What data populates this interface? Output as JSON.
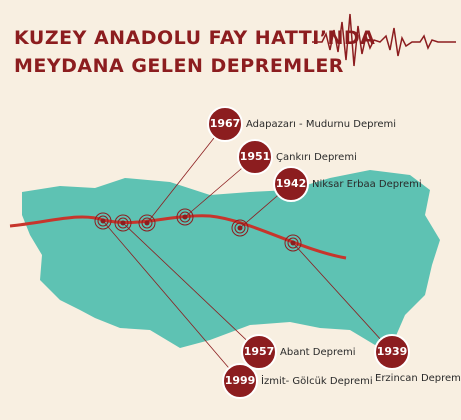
{
  "header": {
    "title_lines": [
      "KUZEY ANADOLU FAY HATTI’NDA",
      "MEYDANA GELEN DEPREMLER"
    ]
  },
  "events": [
    {
      "year": "1967",
      "label": "Adapazarı - Mudurnu Depremi"
    },
    {
      "year": "1951",
      "label": "Çankırı Depremi"
    },
    {
      "year": "1942",
      "label": "Niksar Erbaa Depremi"
    },
    {
      "year": "1957",
      "label": "Abant Depremi"
    },
    {
      "year": "1999",
      "label": "İzmit- Gölcük Depremi"
    },
    {
      "year": "1939",
      "label": "Erzincan Depremi"
    }
  ]
}
